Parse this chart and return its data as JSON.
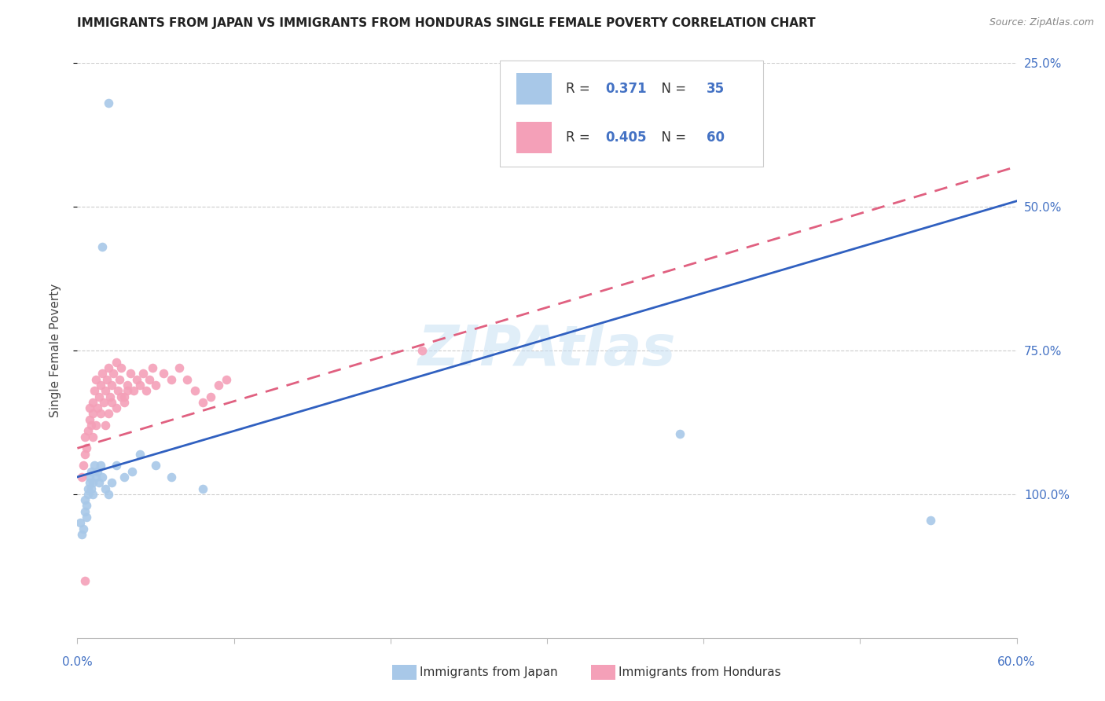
{
  "title": "IMMIGRANTS FROM JAPAN VS IMMIGRANTS FROM HONDURAS SINGLE FEMALE POVERTY CORRELATION CHART",
  "source": "Source: ZipAtlas.com",
  "ylabel": "Single Female Poverty",
  "xlim": [
    0.0,
    0.6
  ],
  "ylim": [
    0.0,
    1.0
  ],
  "ytick_vals": [
    0.25,
    0.5,
    0.75,
    1.0
  ],
  "ytick_labels": [
    "25.0%",
    "50.0%",
    "75.0%",
    "100.0%"
  ],
  "japan_color": "#a8c8e8",
  "honduras_color": "#f4a0b8",
  "japan_line_color": "#3060c0",
  "honduras_line_color": "#e06080",
  "watermark": "ZIPAtlas",
  "background_color": "#ffffff",
  "japan_line_x0": 0.0,
  "japan_line_y0": 0.28,
  "japan_line_x1": 0.6,
  "japan_line_y1": 0.76,
  "honduras_line_x0": 0.0,
  "honduras_line_y0": 0.33,
  "honduras_line_x1": 0.6,
  "honduras_line_y1": 0.82,
  "japan_x": [
    0.002,
    0.003,
    0.004,
    0.005,
    0.005,
    0.006,
    0.006,
    0.007,
    0.007,
    0.008,
    0.008,
    0.009,
    0.009,
    0.01,
    0.01,
    0.011,
    0.012,
    0.013,
    0.014,
    0.015,
    0.016,
    0.018,
    0.02,
    0.022,
    0.025,
    0.03,
    0.035,
    0.04,
    0.05,
    0.06,
    0.08,
    0.016,
    0.02,
    0.385,
    0.545
  ],
  "japan_y": [
    0.2,
    0.18,
    0.19,
    0.22,
    0.24,
    0.21,
    0.23,
    0.26,
    0.25,
    0.27,
    0.28,
    0.26,
    0.29,
    0.25,
    0.27,
    0.3,
    0.28,
    0.29,
    0.27,
    0.3,
    0.28,
    0.26,
    0.25,
    0.27,
    0.3,
    0.28,
    0.29,
    0.32,
    0.3,
    0.28,
    0.26,
    0.68,
    0.93,
    0.355,
    0.205
  ],
  "honduras_x": [
    0.003,
    0.004,
    0.005,
    0.005,
    0.006,
    0.007,
    0.008,
    0.008,
    0.009,
    0.01,
    0.01,
    0.011,
    0.012,
    0.013,
    0.014,
    0.015,
    0.016,
    0.017,
    0.018,
    0.019,
    0.02,
    0.021,
    0.022,
    0.023,
    0.025,
    0.026,
    0.027,
    0.028,
    0.03,
    0.032,
    0.034,
    0.036,
    0.038,
    0.04,
    0.042,
    0.044,
    0.046,
    0.048,
    0.05,
    0.055,
    0.06,
    0.065,
    0.07,
    0.075,
    0.08,
    0.085,
    0.09,
    0.095,
    0.01,
    0.012,
    0.015,
    0.018,
    0.02,
    0.022,
    0.025,
    0.028,
    0.03,
    0.032,
    0.22,
    0.005
  ],
  "honduras_y": [
    0.28,
    0.3,
    0.32,
    0.35,
    0.33,
    0.36,
    0.38,
    0.4,
    0.37,
    0.39,
    0.41,
    0.43,
    0.45,
    0.4,
    0.42,
    0.44,
    0.46,
    0.41,
    0.43,
    0.45,
    0.47,
    0.42,
    0.44,
    0.46,
    0.48,
    0.43,
    0.45,
    0.47,
    0.42,
    0.44,
    0.46,
    0.43,
    0.45,
    0.44,
    0.46,
    0.43,
    0.45,
    0.47,
    0.44,
    0.46,
    0.45,
    0.47,
    0.45,
    0.43,
    0.41,
    0.42,
    0.44,
    0.45,
    0.35,
    0.37,
    0.39,
    0.37,
    0.39,
    0.41,
    0.4,
    0.42,
    0.41,
    0.43,
    0.5,
    0.1
  ]
}
